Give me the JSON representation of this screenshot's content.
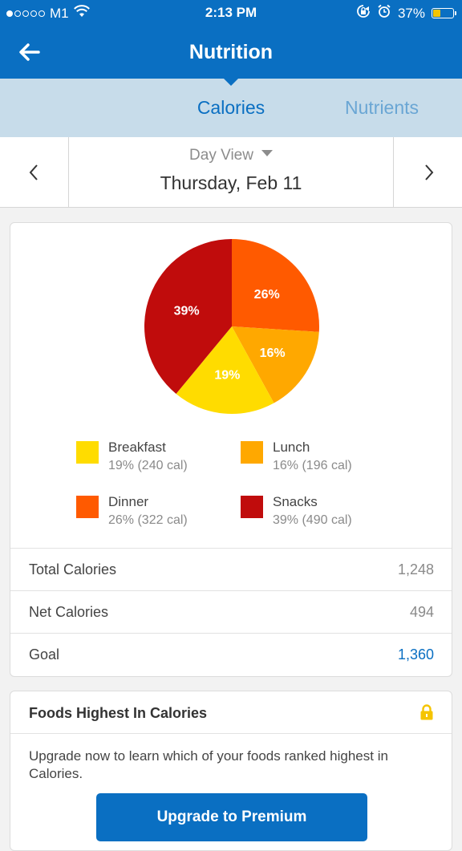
{
  "status_bar": {
    "carrier": "M1",
    "time": "2:13 PM",
    "battery_percent": "37%",
    "battery_level": 0.37,
    "signal_bars_filled": 1,
    "signal_bars_total": 5
  },
  "navbar": {
    "title": "Nutrition",
    "back_icon": "back-arrow-icon"
  },
  "tabs": [
    {
      "label": "Calories",
      "active": true
    },
    {
      "label": "Nutrients",
      "active": false
    }
  ],
  "date_nav": {
    "view_label": "Day View",
    "date": "Thursday, Feb 11"
  },
  "chart_data": {
    "type": "pie",
    "slices": [
      {
        "name": "Dinner",
        "percent": 26,
        "label": "26%",
        "color": "#ff5a00"
      },
      {
        "name": "Lunch",
        "percent": 16,
        "label": "16%",
        "color": "#ffa800"
      },
      {
        "name": "Breakfast",
        "percent": 19,
        "label": "19%",
        "color": "#ffdc00"
      },
      {
        "name": "Snacks",
        "percent": 39,
        "label": "39%",
        "color": "#c00c0c"
      }
    ]
  },
  "legend": [
    {
      "name": "Breakfast",
      "detail": "19% (240 cal)",
      "color": "#ffdc00"
    },
    {
      "name": "Lunch",
      "detail": "16% (196 cal)",
      "color": "#ffa800"
    },
    {
      "name": "Dinner",
      "detail": "26% (322 cal)",
      "color": "#ff5a00"
    },
    {
      "name": "Snacks",
      "detail": "39% (490 cal)",
      "color": "#c00c0c"
    }
  ],
  "stats": [
    {
      "label": "Total Calories",
      "value": "1,248"
    },
    {
      "label": "Net Calories",
      "value": "494"
    },
    {
      "label": "Goal",
      "value": "1,360"
    }
  ],
  "foods_card": {
    "title": "Foods Highest In Calories",
    "description": "Upgrade now to learn which of your foods ranked highest in Calories.",
    "button_label": "Upgrade to Premium",
    "lock_color": "#f5c400"
  }
}
